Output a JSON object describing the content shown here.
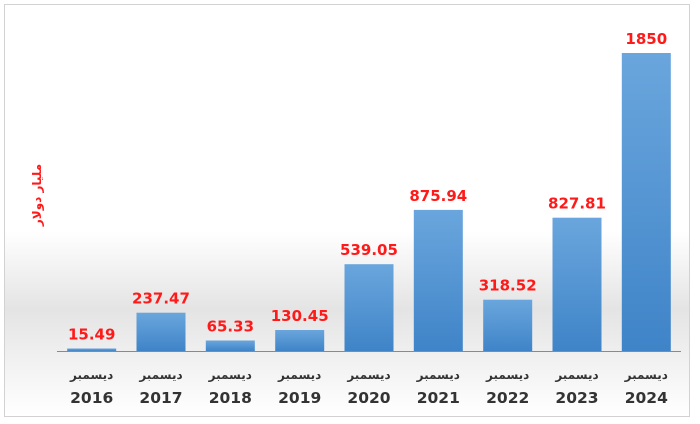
{
  "chart_data": {
    "type": "bar",
    "title": "",
    "xlabel": "",
    "ylabel": "مليار دولار",
    "categories": [
      {
        "month": "ديسمبر",
        "year": "2016"
      },
      {
        "month": "ديسمبر",
        "year": "2017"
      },
      {
        "month": "ديسمبر",
        "year": "2018"
      },
      {
        "month": "ديسمبر",
        "year": "2019"
      },
      {
        "month": "ديسمبر",
        "year": "2020"
      },
      {
        "month": "ديسمبر",
        "year": "2021"
      },
      {
        "month": "ديسمبر",
        "year": "2022"
      },
      {
        "month": "ديسمبر",
        "year": "2023"
      },
      {
        "month": "ديسمبر",
        "year": "2024"
      }
    ],
    "values": [
      15.49,
      237.47,
      65.33,
      130.45,
      539.05,
      875.94,
      318.52,
      827.81,
      1850
    ],
    "value_labels": [
      "15.49",
      "237.47",
      "65.33",
      "130.45",
      "539.05",
      "875.94",
      "318.52",
      "827.81",
      "1850"
    ],
    "ylim": [
      0,
      1850
    ],
    "grid": false,
    "legend": "none",
    "colors": {
      "bar": "#5b9bd5",
      "bar_dark": "#3a7fc4",
      "data_label": "#ff1a1a",
      "axis_text": "#333333"
    }
  }
}
